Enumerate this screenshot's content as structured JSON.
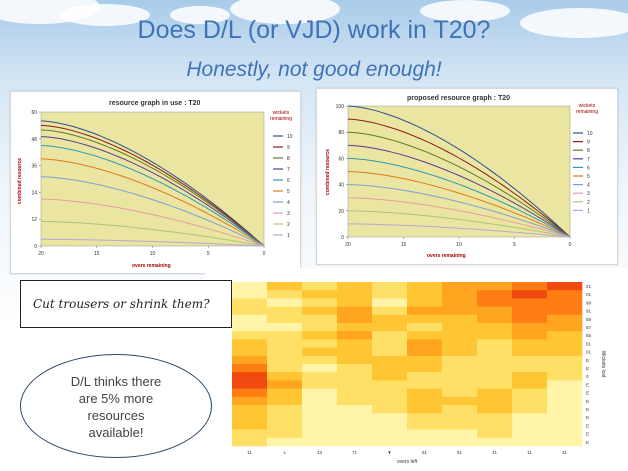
{
  "title": "Does D/L (or VJD) work in T20?",
  "subtitle": "Honestly, not good enough!",
  "callout_box": "Cut trousers or shrink them?",
  "oval_text": [
    "D/L thinks there",
    "are 5% more",
    "resources",
    "available!"
  ],
  "chart_data": [
    {
      "type": "line",
      "title": "resource graph in use : T20",
      "xlabel": "overs remaining",
      "ylabel": "combined resource",
      "x_ticks": [
        "20",
        "15",
        "10",
        "5",
        "0"
      ],
      "y_ticks": [
        "0",
        "12",
        "24",
        "36",
        "48",
        "60"
      ],
      "ylim": [
        0,
        60
      ],
      "legend_title": [
        "wickets",
        "remaining"
      ],
      "legend_position": "right",
      "background": "#ebe5a2",
      "series": [
        {
          "name": "10",
          "color": "#2e4f8f",
          "start": 56
        },
        {
          "name": "9",
          "color": "#8b1b1b",
          "start": 54
        },
        {
          "name": "8",
          "color": "#5b7d2d",
          "start": 52
        },
        {
          "name": "7",
          "color": "#5a3e8f",
          "start": 49
        },
        {
          "name": "6",
          "color": "#2a9bb5",
          "start": 45
        },
        {
          "name": "5",
          "color": "#e07a1b",
          "start": 39
        },
        {
          "name": "4",
          "color": "#7b9fd0",
          "start": 31
        },
        {
          "name": "3",
          "color": "#e5a0a0",
          "start": 21
        },
        {
          "name": "2",
          "color": "#a9c67a",
          "start": 11
        },
        {
          "name": "1",
          "color": "#b7a8d6",
          "start": 3
        }
      ]
    },
    {
      "type": "line",
      "title": "proposed resource graph : T20",
      "xlabel": "overs remaining",
      "ylabel": "combined resource",
      "x_ticks": [
        "20",
        "15",
        "10",
        "5",
        "0"
      ],
      "y_ticks": [
        "0",
        "20",
        "40",
        "60",
        "80",
        "100"
      ],
      "ylim": [
        0,
        100
      ],
      "legend_title": [
        "wickets",
        "remaining"
      ],
      "legend_position": "right",
      "background": "#ebe5a2",
      "series": [
        {
          "name": "10",
          "color": "#2e4f8f",
          "start": 100
        },
        {
          "name": "9",
          "color": "#8b1b1b",
          "start": 90
        },
        {
          "name": "8",
          "color": "#5b7d2d",
          "start": 80
        },
        {
          "name": "7",
          "color": "#5a3e8f",
          "start": 70
        },
        {
          "name": "6",
          "color": "#2a9bb5",
          "start": 60
        },
        {
          "name": "5",
          "color": "#e07a1b",
          "start": 50
        },
        {
          "name": "4",
          "color": "#7b9fd0",
          "start": 40
        },
        {
          "name": "3",
          "color": "#e5a0a0",
          "start": 30
        },
        {
          "name": "2",
          "color": "#a9c67a",
          "start": 20
        },
        {
          "name": "1",
          "color": "#b7a8d6",
          "start": 10
        }
      ]
    },
    {
      "type": "heatmap",
      "xlabel": "overs left",
      "x_ticks": [
        "11",
        "x",
        "13",
        "71",
        "▼",
        "61",
        "61",
        "41",
        "11",
        "31"
      ],
      "y_ticks": [
        "21",
        "01",
        "99",
        "91",
        "89",
        "57",
        "55",
        "01",
        "01",
        "E",
        "E",
        "0",
        "E",
        "E",
        "E",
        "E",
        "E",
        "E",
        "E",
        "E"
      ],
      "right_label": "Wickets lost",
      "palette": [
        "#fffde6",
        "#fff4a8",
        "#ffe066",
        "#ffc533",
        "#ffa51f",
        "#ff7d12",
        "#f04a10"
      ],
      "values": [
        [
          1,
          3,
          2,
          3,
          2,
          3,
          4,
          4,
          5,
          6
        ],
        [
          1,
          2,
          3,
          3,
          2,
          3,
          4,
          5,
          6,
          5
        ],
        [
          2,
          1,
          2,
          3,
          1,
          3,
          4,
          5,
          5,
          5
        ],
        [
          2,
          2,
          3,
          4,
          2,
          4,
          4,
          4,
          5,
          5
        ],
        [
          1,
          2,
          2,
          4,
          3,
          3,
          3,
          4,
          5,
          4
        ],
        [
          1,
          1,
          2,
          3,
          3,
          2,
          3,
          3,
          4,
          4
        ],
        [
          2,
          2,
          3,
          4,
          2,
          3,
          3,
          3,
          4,
          3
        ],
        [
          3,
          2,
          2,
          3,
          2,
          4,
          3,
          2,
          3,
          3
        ],
        [
          3,
          2,
          3,
          3,
          2,
          4,
          3,
          2,
          3,
          3
        ],
        [
          4,
          2,
          2,
          3,
          3,
          3,
          2,
          2,
          2,
          2
        ],
        [
          5,
          2,
          1,
          2,
          3,
          3,
          2,
          2,
          2,
          2
        ],
        [
          6,
          3,
          2,
          2,
          3,
          2,
          2,
          2,
          3,
          2
        ],
        [
          6,
          4,
          2,
          2,
          2,
          2,
          2,
          2,
          3,
          1
        ],
        [
          5,
          3,
          1,
          2,
          2,
          3,
          2,
          3,
          2,
          1
        ],
        [
          4,
          3,
          1,
          2,
          2,
          3,
          3,
          3,
          2,
          1
        ],
        [
          3,
          2,
          1,
          1,
          2,
          3,
          2,
          3,
          2,
          1
        ],
        [
          3,
          2,
          1,
          1,
          1,
          2,
          2,
          2,
          1,
          1
        ],
        [
          3,
          2,
          1,
          1,
          1,
          2,
          2,
          2,
          1,
          1
        ],
        [
          2,
          2,
          1,
          1,
          1,
          1,
          1,
          2,
          1,
          1
        ],
        [
          2,
          1,
          1,
          1,
          1,
          1,
          1,
          1,
          1,
          1
        ]
      ]
    }
  ]
}
